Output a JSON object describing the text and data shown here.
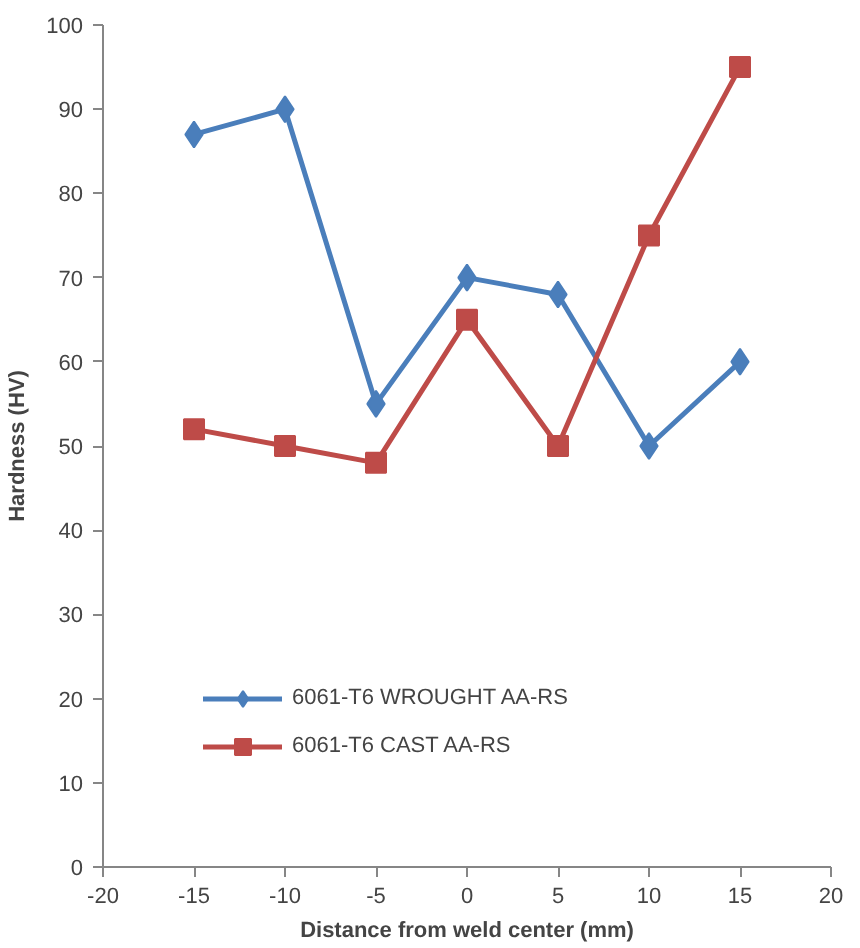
{
  "chart_data": {
    "type": "line",
    "xlabel": "Distance from weld center (mm)",
    "ylabel": "Hardness (HV)",
    "x": [
      -15,
      -10,
      -5,
      0,
      5,
      10,
      15
    ],
    "series": [
      {
        "name": "6061-T6 WROUGHT AA-RS",
        "color": "#4a7ebb",
        "marker": "diamond",
        "values": [
          87,
          90,
          55,
          70,
          68,
          50,
          60
        ]
      },
      {
        "name": "6061-T6 CAST AA-RS",
        "color": "#be4b48",
        "marker": "square",
        "values": [
          52,
          50,
          48,
          65,
          50,
          75,
          95
        ]
      }
    ],
    "xlim": [
      -20,
      20
    ],
    "xticks": [
      -20,
      -15,
      -10,
      -5,
      0,
      5,
      10,
      15,
      20
    ],
    "ylim": [
      0,
      100
    ],
    "yticks": [
      0,
      10,
      20,
      30,
      40,
      50,
      60,
      70,
      80,
      90,
      100
    ],
    "grid": false,
    "legend": "bottom left",
    "line_style": "solid"
  }
}
